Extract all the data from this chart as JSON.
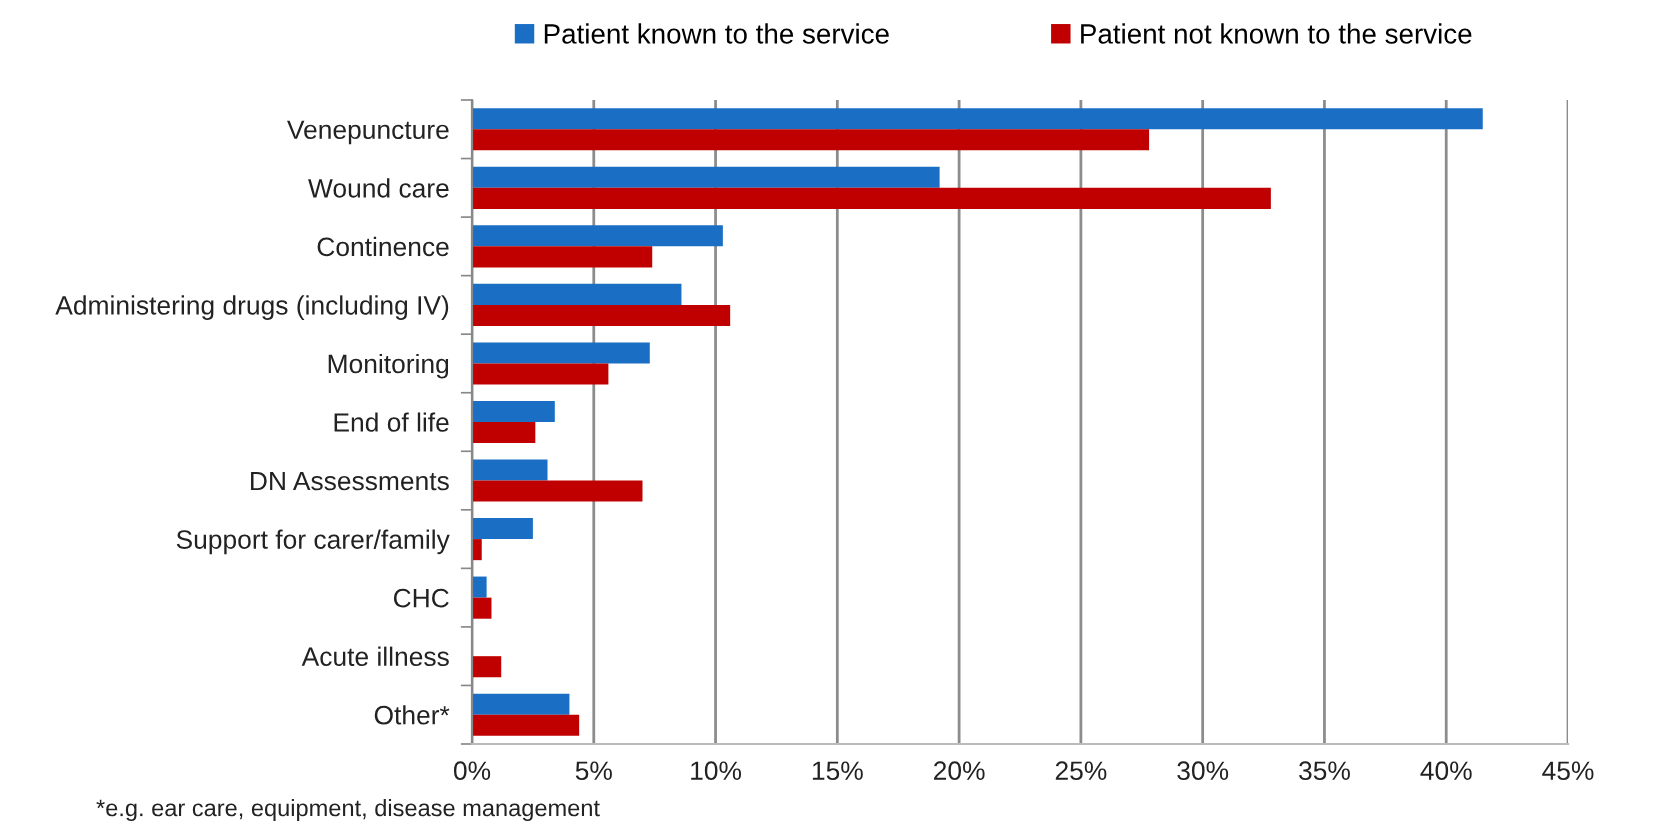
{
  "chart_data": {
    "type": "bar",
    "orientation": "horizontal",
    "categories": [
      "Venepuncture",
      "Wound care",
      "Continence",
      "Administering drugs (including IV)",
      "Monitoring",
      "End of life",
      "DN Assessments",
      "Support for carer/family",
      "CHC",
      "Acute illness",
      "Other*"
    ],
    "series": [
      {
        "name": "Patient known to the service",
        "color": "#1a6fc4",
        "values": [
          41.5,
          19.2,
          10.3,
          8.6,
          7.3,
          3.4,
          3.1,
          2.5,
          0.6,
          0,
          4.0
        ]
      },
      {
        "name": "Patient not known to the service",
        "color": "#c00000",
        "values": [
          27.8,
          32.8,
          7.4,
          10.6,
          5.6,
          2.6,
          7.0,
          0.4,
          0.8,
          1.2,
          4.4
        ]
      }
    ],
    "xlim": [
      0,
      45
    ],
    "xticks": [
      {
        "value": 0,
        "label": "0%"
      },
      {
        "value": 5,
        "label": "5%"
      },
      {
        "value": 10,
        "label": "10%"
      },
      {
        "value": 15,
        "label": "15%"
      },
      {
        "value": 20,
        "label": "20%"
      },
      {
        "value": 25,
        "label": "25%"
      },
      {
        "value": 30,
        "label": "30%"
      },
      {
        "value": 35,
        "label": "35%"
      },
      {
        "value": 40,
        "label": "40%"
      },
      {
        "value": 45,
        "label": "45%"
      }
    ],
    "grid": "x",
    "legend": "top",
    "annotations": [
      "*e.g. ear care, equipment, disease management"
    ]
  }
}
